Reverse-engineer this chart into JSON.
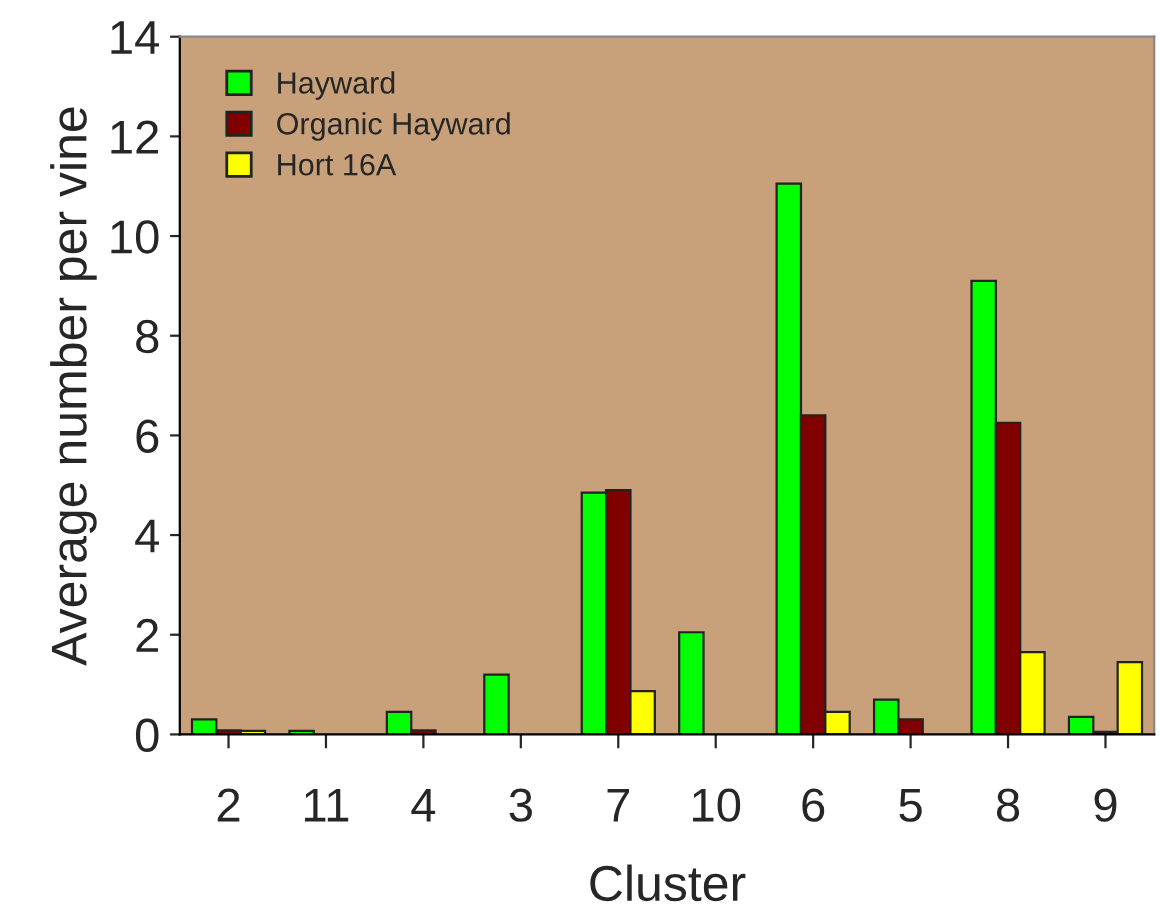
{
  "chart_data": {
    "type": "bar",
    "xlabel": "Cluster",
    "ylabel": "Average number per vine",
    "categories": [
      "2",
      "11",
      "4",
      "3",
      "7",
      "10",
      "6",
      "5",
      "8",
      "9"
    ],
    "series": [
      {
        "name": "Hayward",
        "color": "#00ff00",
        "values": [
          0.3,
          0.07,
          0.45,
          1.2,
          4.85,
          2.05,
          11.05,
          0.7,
          9.1,
          0.35
        ]
      },
      {
        "name": "Organic Hayward",
        "color": "#800000",
        "values": [
          0.08,
          null,
          0.08,
          0,
          4.9,
          0,
          6.4,
          0.3,
          6.25,
          0.05
        ]
      },
      {
        "name": "Hort 16A",
        "color": "#ffff00",
        "values": [
          0.07,
          null,
          null,
          0,
          0.87,
          0,
          0.45,
          0,
          1.65,
          1.45
        ]
      }
    ],
    "ylim": [
      0,
      14
    ],
    "yticks": [
      0,
      2,
      4,
      6,
      8,
      10,
      12,
      14
    ],
    "grid": false,
    "legend": "top left"
  }
}
